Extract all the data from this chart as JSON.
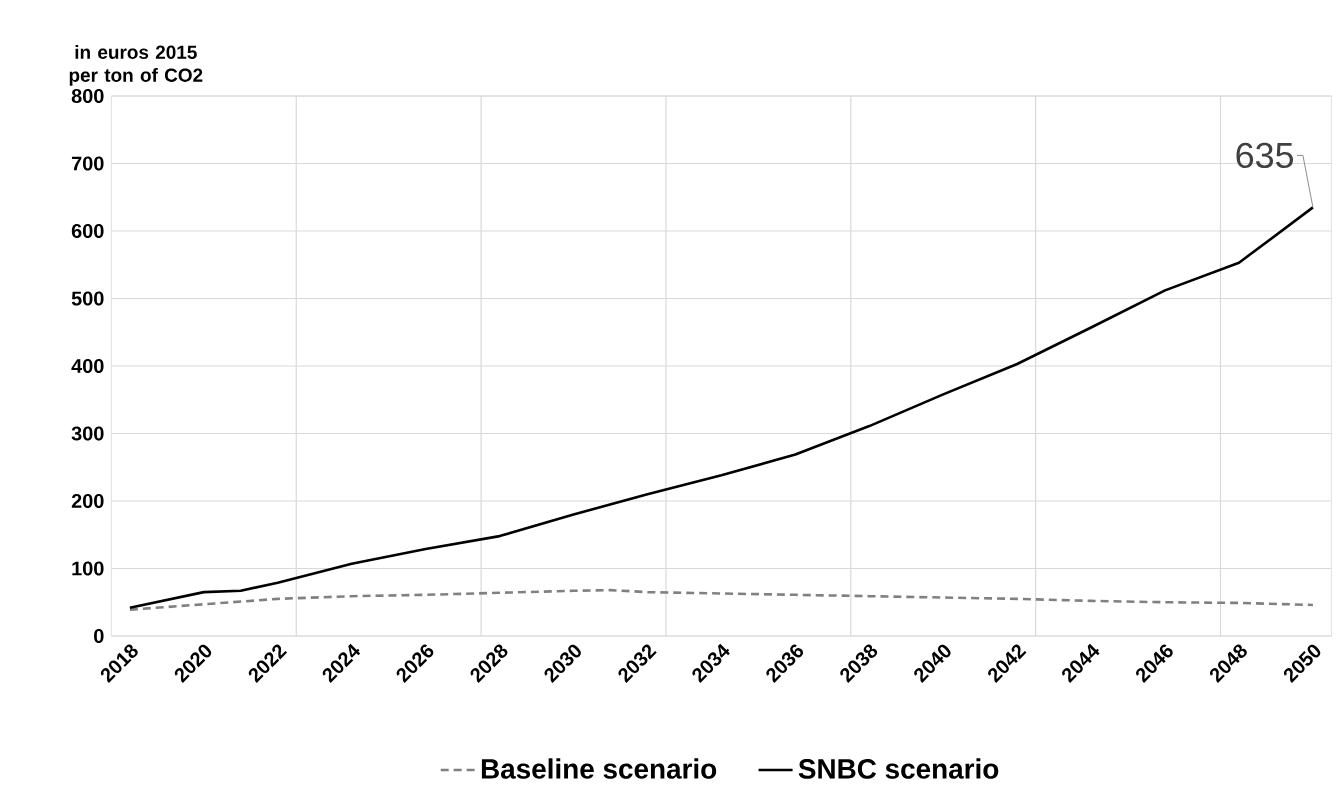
{
  "chart_data": {
    "type": "line",
    "ylabel": "in euros 2015 per ton of CO2",
    "xlim": [
      2017.5,
      2050.5
    ],
    "xticks": [
      2018,
      2020,
      2022,
      2024,
      2026,
      2028,
      2030,
      2032,
      2034,
      2036,
      2038,
      2040,
      2042,
      2044,
      2046,
      2048,
      2050,
      {
        "value": 2022.5,
        "label": null
      },
      {
        "value": 2027.5,
        "label": null
      },
      {
        "value": 2032.5,
        "label": null
      },
      {
        "value": 2037.5,
        "label": null
      },
      {
        "value": 2042.5,
        "label": null
      },
      {
        "value": 2047.5,
        "label": null
      }
    ],
    "ylim": [
      0,
      800
    ],
    "yticks": [
      0,
      100,
      200,
      300,
      400,
      500,
      600,
      700,
      800
    ],
    "grid": true,
    "legend": "bottom",
    "series": [
      {
        "name": "Baseline scenario",
        "color": "#808080",
        "line_style": "dashed",
        "x": [
          2018,
          2020,
          2022,
          2024,
          2026,
          2028,
          2030,
          2031,
          2032,
          2034,
          2036,
          2038,
          2040,
          2042,
          2044,
          2046,
          2048,
          2050
        ],
        "values": [
          39,
          47,
          55,
          59,
          61,
          64,
          67,
          68,
          65,
          63,
          61,
          59,
          57,
          55,
          52,
          50,
          49,
          46
        ]
      },
      {
        "name": "SNBC scenario",
        "color": "#000000",
        "line_style": "solid",
        "x": [
          2018,
          2020,
          2021,
          2022,
          2024,
          2026,
          2028,
          2030,
          2032,
          2034,
          2036,
          2038,
          2040,
          2042,
          2044,
          2046,
          2048,
          2050
        ],
        "values": [
          42,
          65,
          67,
          79,
          107,
          129,
          148,
          180,
          210,
          238,
          269,
          311,
          358,
          403,
          457,
          512,
          553,
          635
        ]
      }
    ],
    "annotations": [
      {
        "text": "635",
        "x": 2050,
        "y": 635
      }
    ]
  }
}
